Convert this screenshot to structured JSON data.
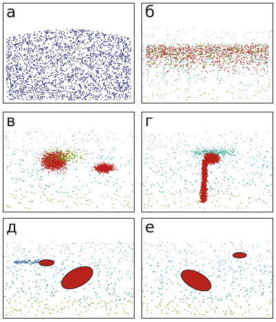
{
  "panels": [
    {
      "label": "а",
      "stage": "uniform-cloud"
    },
    {
      "label": "б",
      "stage": "early-clustering"
    },
    {
      "label": "в",
      "stage": "cloud-forming"
    },
    {
      "label": "г",
      "stage": "vertical-column"
    },
    {
      "label": "д",
      "stage": "two-blobs"
    },
    {
      "label": "е",
      "stage": "separated-blobs"
    }
  ],
  "colors": {
    "uniform": "#2a2a7a",
    "hot": "#b8221c",
    "warm": "#7aa01f",
    "mid": "#2a9a6a",
    "cool": "#3aa0b8",
    "cold": "#8ab8d8",
    "blob_edge": "#000000"
  }
}
